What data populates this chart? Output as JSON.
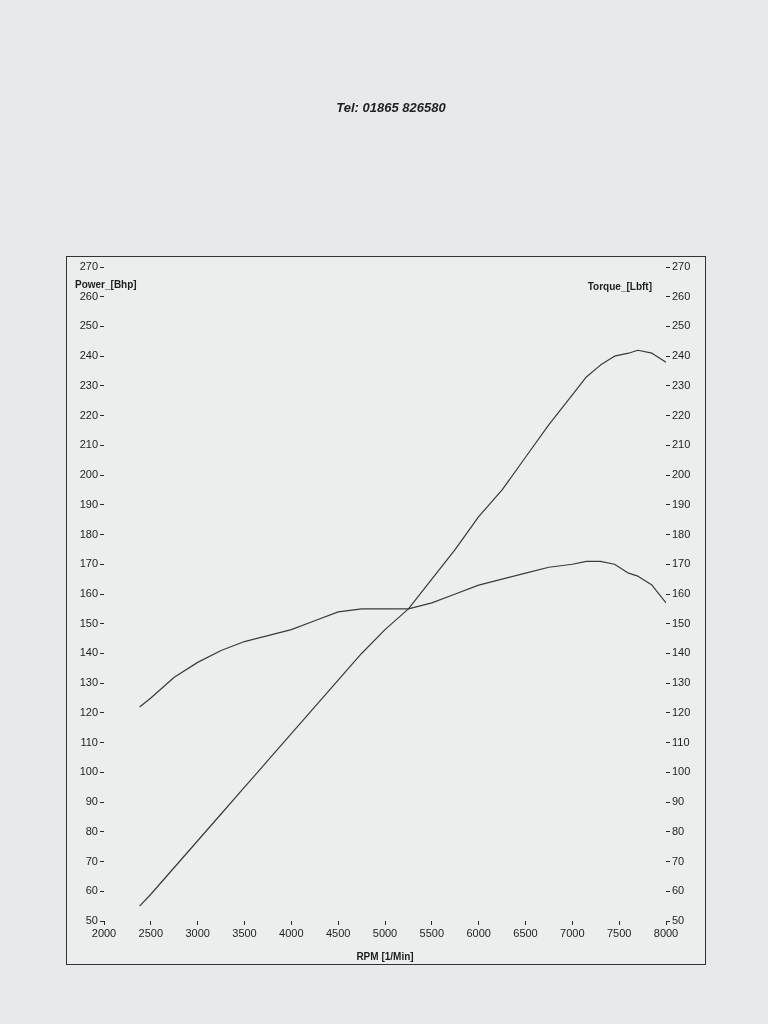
{
  "chart_data": {
    "type": "line",
    "xlabel": "RPM [1/Min]",
    "ylabel": "Power_[Bhp]",
    "y2label": "Torque_[Lbft]",
    "annotations": [
      "Tel: 01865 826580"
    ],
    "xlim": [
      2000,
      8000
    ],
    "xticks": [
      2000,
      2500,
      3000,
      3500,
      4000,
      4500,
      5000,
      5500,
      6000,
      6500,
      7000,
      7500,
      8000
    ],
    "ylim": [
      50,
      270
    ],
    "yticks": [
      50,
      60,
      70,
      80,
      90,
      100,
      110,
      120,
      130,
      140,
      150,
      160,
      170,
      180,
      190,
      200,
      210,
      220,
      230,
      240,
      250,
      260,
      270
    ],
    "y2lim": [
      50,
      270
    ],
    "y2ticks": [
      50,
      60,
      70,
      80,
      90,
      100,
      110,
      120,
      130,
      140,
      150,
      160,
      170,
      180,
      190,
      200,
      210,
      220,
      230,
      240,
      250,
      260,
      270
    ],
    "marker": "none",
    "line_style": "solid",
    "x": [
      2380,
      2500,
      2750,
      3000,
      3250,
      3500,
      3750,
      4000,
      4250,
      4500,
      4750,
      5000,
      5250,
      5500,
      5750,
      6000,
      6250,
      6500,
      6750,
      7000,
      7150,
      7300,
      7450,
      7600,
      7700,
      7850,
      8000
    ],
    "series": [
      {
        "color": "#3a3a3a",
        "values": [
          55,
          59,
          68,
          77,
          86,
          95,
          104,
          113,
          122,
          131,
          140,
          148,
          155,
          165,
          175,
          186,
          195,
          206,
          217,
          227,
          233,
          237,
          240,
          241,
          242,
          241,
          238
        ]
      },
      {
        "color": "#3a3a3a",
        "axis": "y2",
        "values": [
          122,
          125,
          132,
          137,
          141,
          144,
          146,
          148,
          151,
          154,
          155,
          155,
          155,
          157,
          160,
          163,
          165,
          167,
          169,
          170,
          171,
          171,
          170,
          167,
          166,
          163,
          157
        ]
      }
    ]
  }
}
